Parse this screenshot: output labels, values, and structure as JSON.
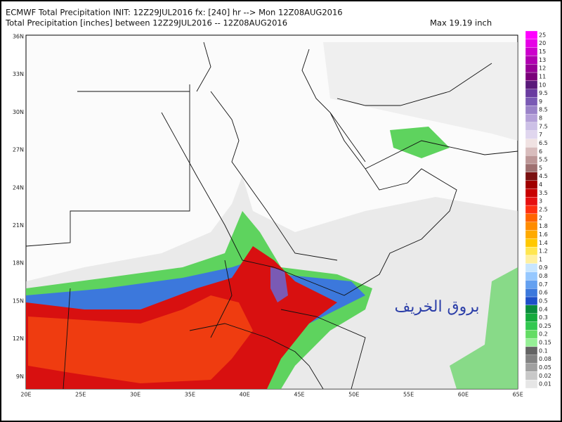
{
  "header": {
    "line1": "ECMWF Total Precipitation INIT: 12Z29JUL2016 fx: [240] hr --> Mon 12Z08AUG2016",
    "line2": "Total Precipitation [inches] between 12Z29JUL2016 -- 12Z08AUG2016",
    "max": "Max 19.19 inch"
  },
  "axes": {
    "lat_labels": [
      "36N",
      "33N",
      "30N",
      "27N",
      "24N",
      "21N",
      "18N",
      "15N",
      "12N",
      "9N"
    ],
    "lon_labels": [
      "20E",
      "25E",
      "30E",
      "35E",
      "40E",
      "45E",
      "50E",
      "55E",
      "60E",
      "65E"
    ]
  },
  "colorbar": {
    "levels": [
      {
        "label": "25",
        "color": "#ff00ff"
      },
      {
        "label": "20",
        "color": "#e600e6"
      },
      {
        "label": "15",
        "color": "#cc00cc"
      },
      {
        "label": "13",
        "color": "#b000b0"
      },
      {
        "label": "12",
        "color": "#960096"
      },
      {
        "label": "11",
        "color": "#7a007a"
      },
      {
        "label": "10",
        "color": "#5a1a7a"
      },
      {
        "label": "9.5",
        "color": "#6a3ca0"
      },
      {
        "label": "9",
        "color": "#7a5ab4"
      },
      {
        "label": "8.5",
        "color": "#9a82c8"
      },
      {
        "label": "8",
        "color": "#b4a0d8"
      },
      {
        "label": "7.5",
        "color": "#ccc0e6"
      },
      {
        "label": "7",
        "color": "#e0d6ee"
      },
      {
        "label": "6.5",
        "color": "#f0e2e2"
      },
      {
        "label": "6",
        "color": "#d8bcbc"
      },
      {
        "label": "5.5",
        "color": "#bc9696"
      },
      {
        "label": "5",
        "color": "#9e7070"
      },
      {
        "label": "4.5",
        "color": "#7a1010"
      },
      {
        "label": "4",
        "color": "#a00000"
      },
      {
        "label": "3.5",
        "color": "#c80000"
      },
      {
        "label": "3",
        "color": "#e61010"
      },
      {
        "label": "2.5",
        "color": "#ff3010"
      },
      {
        "label": "2",
        "color": "#ff6400"
      },
      {
        "label": "1.8",
        "color": "#ff8c00"
      },
      {
        "label": "1.6",
        "color": "#ffaa00"
      },
      {
        "label": "1.4",
        "color": "#ffc800"
      },
      {
        "label": "1.2",
        "color": "#ffe650"
      },
      {
        "label": "1",
        "color": "#fff0a0"
      },
      {
        "label": "0.9",
        "color": "#c8e6ff"
      },
      {
        "label": "0.8",
        "color": "#96c8ff"
      },
      {
        "label": "0.7",
        "color": "#64a0f0"
      },
      {
        "label": "0.6",
        "color": "#3c78dc"
      },
      {
        "label": "0.5",
        "color": "#1e50c8"
      },
      {
        "label": "0.4",
        "color": "#0a8c3c"
      },
      {
        "label": "0.3",
        "color": "#14aa3c"
      },
      {
        "label": "0.25",
        "color": "#32c850"
      },
      {
        "label": "0.2",
        "color": "#64dc64"
      },
      {
        "label": "0.15",
        "color": "#96f096"
      },
      {
        "label": "0.1",
        "color": "#646464"
      },
      {
        "label": "0.08",
        "color": "#828282"
      },
      {
        "label": "0.05",
        "color": "#a0a0a0"
      },
      {
        "label": "0.02",
        "color": "#c8c8c8"
      },
      {
        "label": "0.01",
        "color": "#e6e6e6"
      }
    ]
  },
  "watermark": "بروق الخريف"
}
